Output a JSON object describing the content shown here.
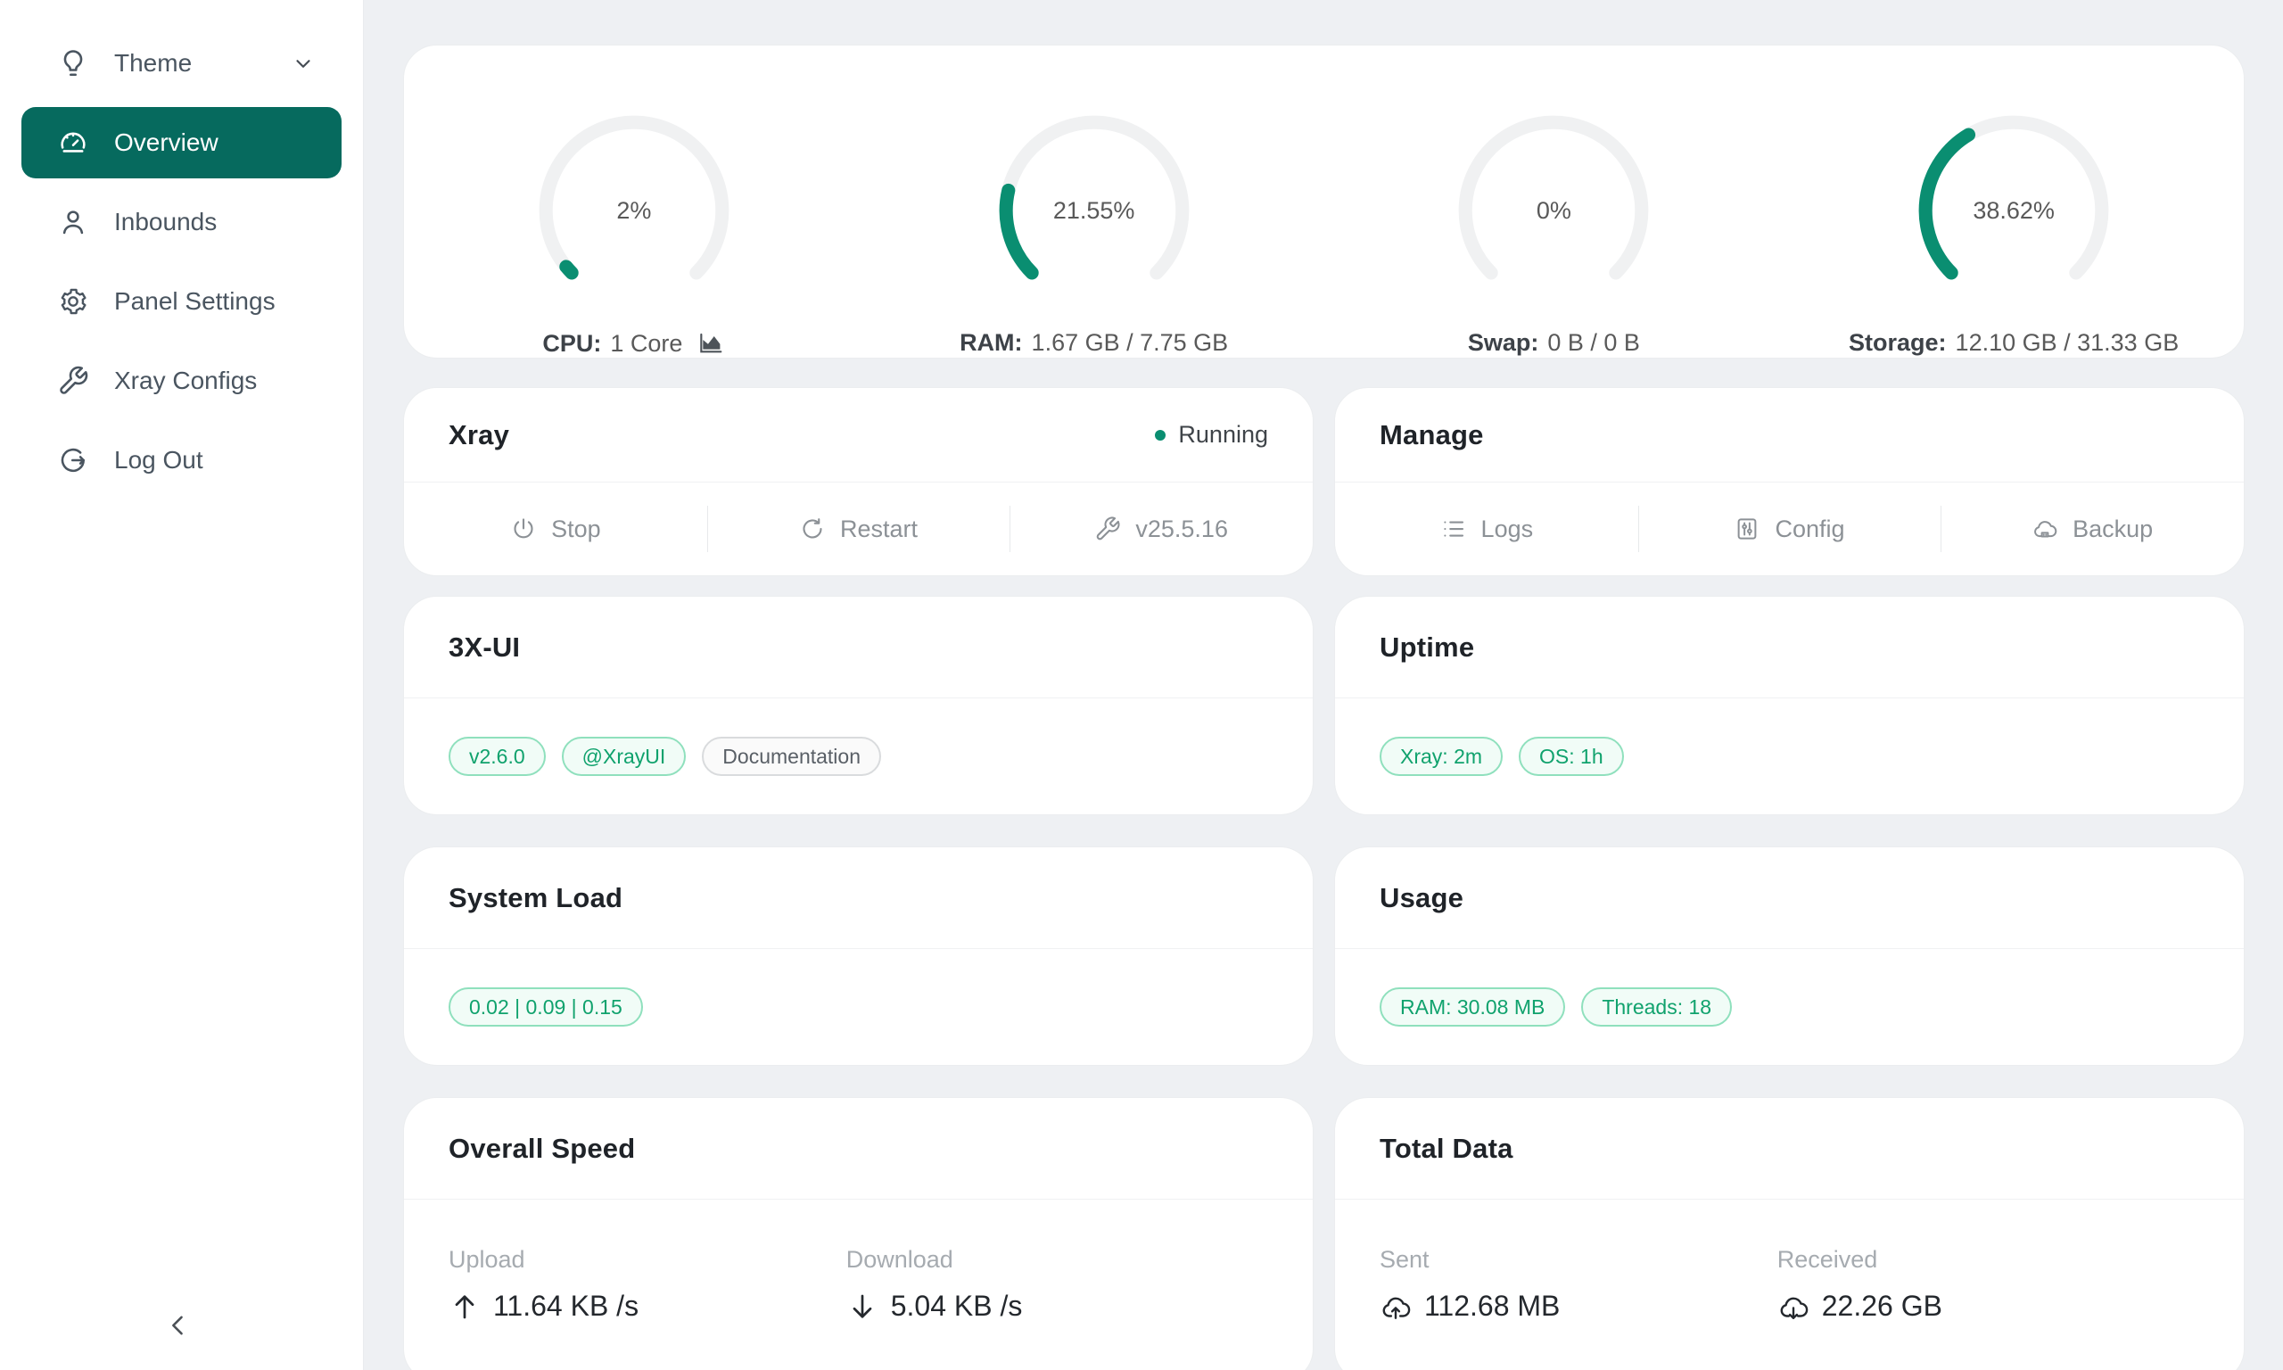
{
  "colors": {
    "accent_sidebar": "#066a5e",
    "gauge_fill": "#0a8e71",
    "gauge_track": "#f0f1f2",
    "badge_green_text": "#10a26d",
    "badge_green_border": "#8fe0bd",
    "page_background": "#eef0f3",
    "running_dot": "#0a8e71"
  },
  "sidebar": {
    "items": [
      {
        "label": "Theme",
        "icon": "bulb-icon",
        "has_submenu_chevron": true,
        "active": false
      },
      {
        "label": "Overview",
        "icon": "dashboard-icon",
        "has_submenu_chevron": false,
        "active": true
      },
      {
        "label": "Inbounds",
        "icon": "user-icon",
        "has_submenu_chevron": false,
        "active": false
      },
      {
        "label": "Panel Settings",
        "icon": "gear-icon",
        "has_submenu_chevron": false,
        "active": false
      },
      {
        "label": "Xray Configs",
        "icon": "wrench-icon",
        "has_submenu_chevron": false,
        "active": false
      },
      {
        "label": "Log Out",
        "icon": "logout-icon",
        "has_submenu_chevron": false,
        "active": false
      }
    ],
    "collapse_icon": "chevron-left-icon"
  },
  "gauges": [
    {
      "id": "cpu",
      "percent": 2,
      "display": "2%",
      "label": "CPU:",
      "value": "1 Core",
      "has_chart_icon": true
    },
    {
      "id": "ram",
      "percent": 21.55,
      "display": "21.55%",
      "label": "RAM:",
      "value": "1.67 GB / 7.75 GB",
      "has_chart_icon": false
    },
    {
      "id": "swap",
      "percent": 0,
      "display": "0%",
      "label": "Swap:",
      "value": "0 B / 0 B",
      "has_chart_icon": false
    },
    {
      "id": "storage",
      "percent": 38.62,
      "display": "38.62%",
      "label": "Storage:",
      "value": "12.10 GB / 31.33 GB",
      "has_chart_icon": false
    }
  ],
  "xray": {
    "title": "Xray",
    "status": "Running",
    "actions": [
      {
        "label": "Stop",
        "icon": "power-icon"
      },
      {
        "label": "Restart",
        "icon": "refresh-icon"
      },
      {
        "label": "v25.5.16",
        "icon": "wrench-icon"
      }
    ]
  },
  "manage": {
    "title": "Manage",
    "actions": [
      {
        "label": "Logs",
        "icon": "list-icon"
      },
      {
        "label": "Config",
        "icon": "sliders-icon"
      },
      {
        "label": "Backup",
        "icon": "cloud-server-icon"
      }
    ]
  },
  "xui": {
    "title": "3X-UI",
    "badges": [
      {
        "text": "v2.6.0",
        "style": "green"
      },
      {
        "text": "@XrayUI",
        "style": "green"
      },
      {
        "text": "Documentation",
        "style": "gray"
      }
    ]
  },
  "uptime": {
    "title": "Uptime",
    "badges": [
      {
        "text": "Xray: 2m",
        "style": "green"
      },
      {
        "text": "OS: 1h",
        "style": "green"
      }
    ]
  },
  "system_load": {
    "title": "System Load",
    "badges": [
      {
        "text": "0.02 | 0.09 | 0.15",
        "style": "green"
      }
    ]
  },
  "usage": {
    "title": "Usage",
    "badges": [
      {
        "text": "RAM: 30.08 MB",
        "style": "green"
      },
      {
        "text": "Threads: 18",
        "style": "green"
      }
    ]
  },
  "overall_speed": {
    "title": "Overall Speed",
    "metrics": [
      {
        "label": "Upload",
        "value": "11.64 KB /s",
        "icon": "arrow-up-icon"
      },
      {
        "label": "Download",
        "value": "5.04 KB /s",
        "icon": "arrow-down-icon"
      }
    ]
  },
  "total_data": {
    "title": "Total Data",
    "metrics": [
      {
        "label": "Sent",
        "value": "112.68 MB",
        "icon": "cloud-upload-icon"
      },
      {
        "label": "Received",
        "value": "22.26 GB",
        "icon": "cloud-download-icon"
      }
    ]
  }
}
